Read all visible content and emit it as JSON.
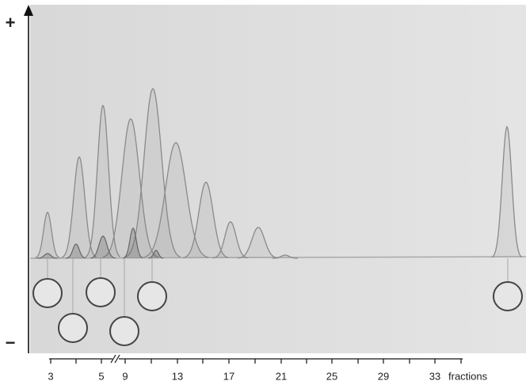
{
  "polarity": {
    "plus": "+",
    "minus": "−"
  },
  "fraction_axis": {
    "labels": [
      "3",
      "5",
      "9",
      "13",
      "17",
      "21",
      "25",
      "29",
      "33"
    ],
    "unit": "fractions"
  }
}
